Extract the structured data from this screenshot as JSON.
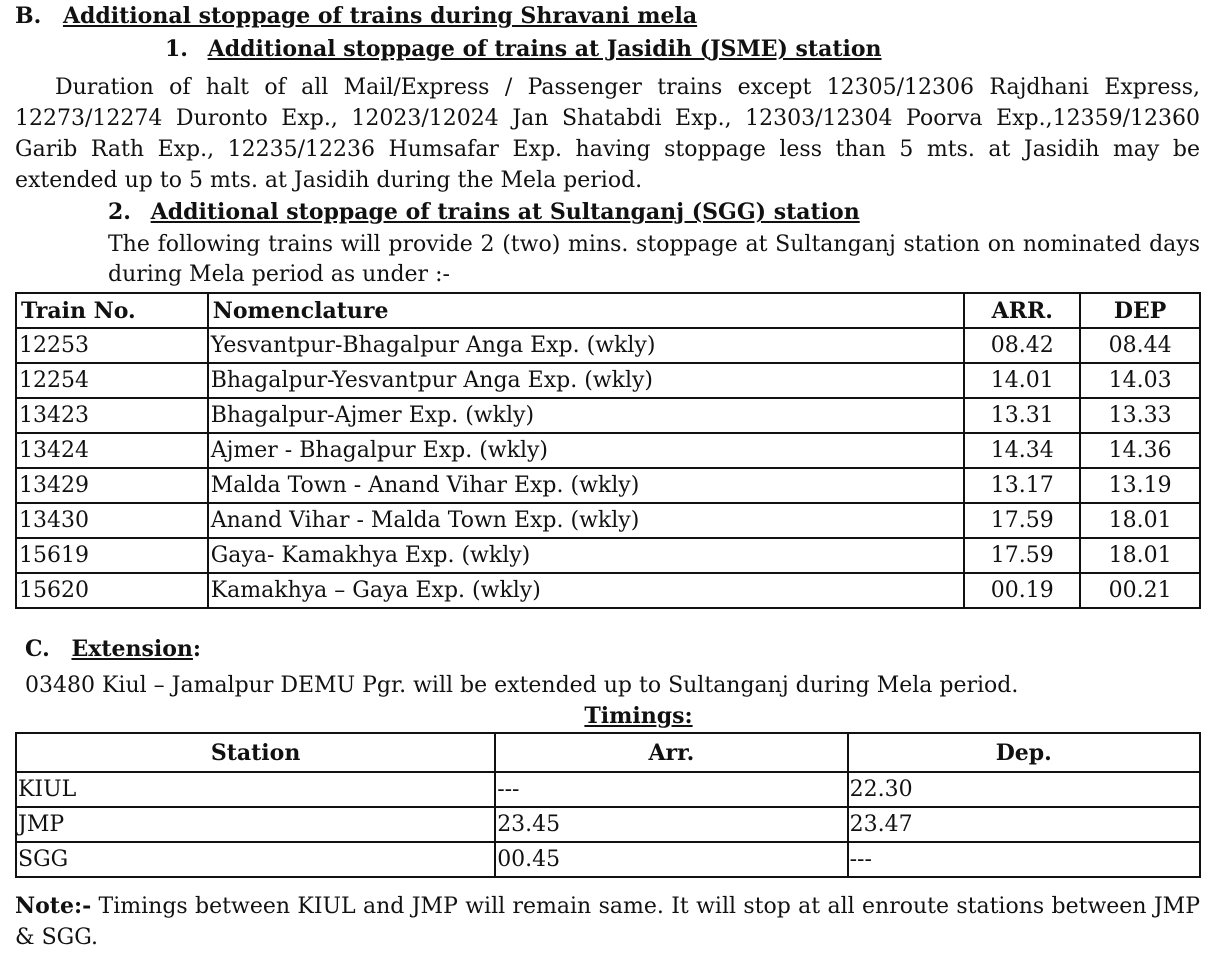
{
  "section_b": {
    "label": "B.",
    "title": "Additional stoppage of trains during Shravani  mela",
    "item1": {
      "number": "1.",
      "title": "Additional stoppage of trains at Jasidih (JSME) station",
      "text": "Duration of halt of all Mail/Express / Passenger trains except 12305/12306 Rajdhani Express, 12273/12274 Duronto Exp., 12023/12024 Jan Shatabdi Exp., 12303/12304 Poorva Exp.,12359/12360 Garib Rath Exp., 12235/12236 Humsafar Exp. having stoppage less than 5 mts. at Jasidih may be extended up to 5 mts. at Jasidih during the Mela period."
    },
    "item2": {
      "number": "2.",
      "title": "Additional stoppage of trains at Sultanganj (SGG) station",
      "text": "The following trains will provide 2 (two) mins. stoppage at Sultanganj station on nominated days during Mela period as under :-"
    },
    "table": {
      "headers": [
        "Train No.",
        "Nomenclature",
        "ARR.",
        "DEP"
      ],
      "rows": [
        [
          "12253",
          "Yesvantpur-Bhagalpur Anga Exp. (wkly)",
          "08.42",
          "08.44"
        ],
        [
          "12254",
          "Bhagalpur-Yesvantpur  Anga Exp. (wkly)",
          "14.01",
          "14.03"
        ],
        [
          "13423",
          "Bhagalpur-Ajmer  Exp. (wkly)",
          "13.31",
          "13.33"
        ],
        [
          "13424",
          "Ajmer -  Bhagalpur  Exp. (wkly)",
          "14.34",
          "14.36"
        ],
        [
          "13429",
          "Malda Town - Anand Vihar Exp. (wkly)",
          "13.17",
          "13.19"
        ],
        [
          "13430",
          "Anand Vihar - Malda Town Exp. (wkly)",
          "17.59",
          "18.01"
        ],
        [
          "15619",
          "Gaya- Kamakhya Exp. (wkly)",
          "17.59",
          "18.01"
        ],
        [
          "15620",
          "Kamakhya – Gaya Exp. (wkly)",
          "00.19",
          "00.21"
        ]
      ]
    }
  },
  "section_c": {
    "label": "C.",
    "title": "Extension",
    "colon": ":",
    "text": "03480 Kiul – Jamalpur DEMU Pgr. will be extended up to Sultanganj during Mela  period.",
    "timings_title": "Timings:",
    "table": {
      "headers": [
        "Station",
        "Arr.",
        "Dep."
      ],
      "rows": [
        [
          "KIUL",
          "---",
          "22.30"
        ],
        [
          "JMP",
          "23.45",
          "23.47"
        ],
        [
          "SGG",
          "00.45",
          "---"
        ]
      ]
    },
    "note_label": "Note:-",
    "note_text": " Timings between KIUL and JMP will remain same. It will stop at all enroute stations between JMP & SGG."
  }
}
